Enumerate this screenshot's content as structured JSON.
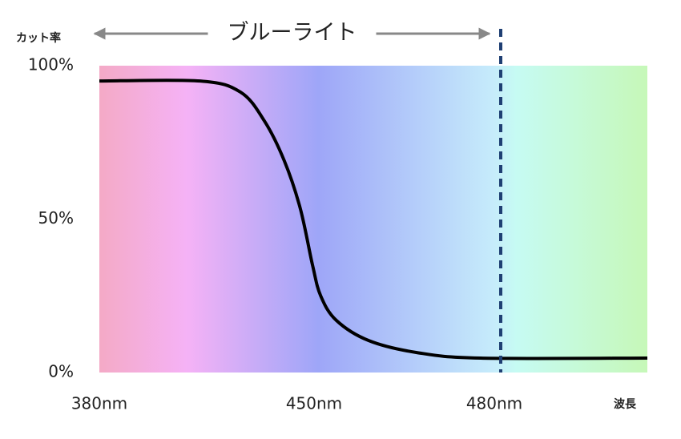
{
  "chart_data": {
    "type": "line",
    "y_label": "カット率",
    "x_label": "波長",
    "x": [
      380,
      412.9,
      426,
      433.8,
      440.3,
      445.5,
      449.5,
      451.1,
      453.7,
      459.1,
      467.1,
      477.7,
      505
    ],
    "values": [
      95,
      95,
      91.4,
      82,
      69,
      53.5,
      35,
      25,
      17,
      10.4,
      6.5,
      4.7,
      4.7
    ],
    "color": "#000000",
    "xlim": [
      380,
      505
    ],
    "xticks": [
      {
        "value": 380,
        "label": "380nm"
      },
      {
        "value": 450,
        "label": "450nm"
      },
      {
        "value": 480,
        "label": "480nm"
      }
    ],
    "ylim": [
      0,
      100
    ],
    "yticks": [
      {
        "value": 0,
        "label": "0%"
      },
      {
        "value": 50,
        "label": "50%"
      },
      {
        "value": 100,
        "label": "100%"
      }
    ],
    "vline": {
      "x": 480,
      "color": "#1f3f73"
    },
    "annotation": {
      "text": "ブルーライト",
      "x_range": [
        380,
        480
      ]
    }
  }
}
